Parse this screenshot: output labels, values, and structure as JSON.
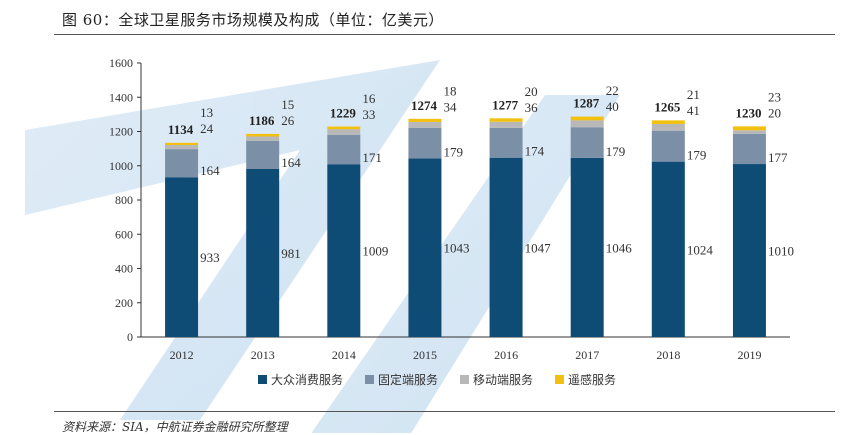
{
  "title": "图 60：全球卫星服务市场规模及构成（单位：亿美元）",
  "source": "资料来源：SIA，中航证券金融研究所整理",
  "chart_data": {
    "type": "bar",
    "stacked": true,
    "title": "图 60：全球卫星服务市场规模及构成（单位：亿美元）",
    "categories": [
      "2012",
      "2013",
      "2014",
      "2015",
      "2016",
      "2017",
      "2018",
      "2019"
    ],
    "series": [
      {
        "name": "大众消费服务",
        "color": "#0f4c75",
        "values": [
          933,
          981,
          1009,
          1043,
          1047,
          1046,
          1024,
          1010
        ]
      },
      {
        "name": "固定端服务",
        "color": "#7b8fa6",
        "values": [
          164,
          164,
          171,
          179,
          174,
          179,
          179,
          177
        ]
      },
      {
        "name": "移动端服务",
        "color": "#b8b8b8",
        "values": [
          24,
          26,
          33,
          34,
          36,
          40,
          41,
          20
        ]
      },
      {
        "name": "遥感服务",
        "color": "#f2c00f",
        "values": [
          13,
          15,
          16,
          18,
          20,
          22,
          21,
          23
        ]
      }
    ],
    "totals": [
      1134,
      1186,
      1229,
      1274,
      1277,
      1287,
      1265,
      1230
    ],
    "ylim": [
      0,
      1600
    ],
    "yticks": [
      0,
      200,
      400,
      600,
      800,
      1000,
      1200,
      1400,
      1600
    ],
    "xlabel": "",
    "ylabel": "",
    "legend_position": "bottom"
  }
}
